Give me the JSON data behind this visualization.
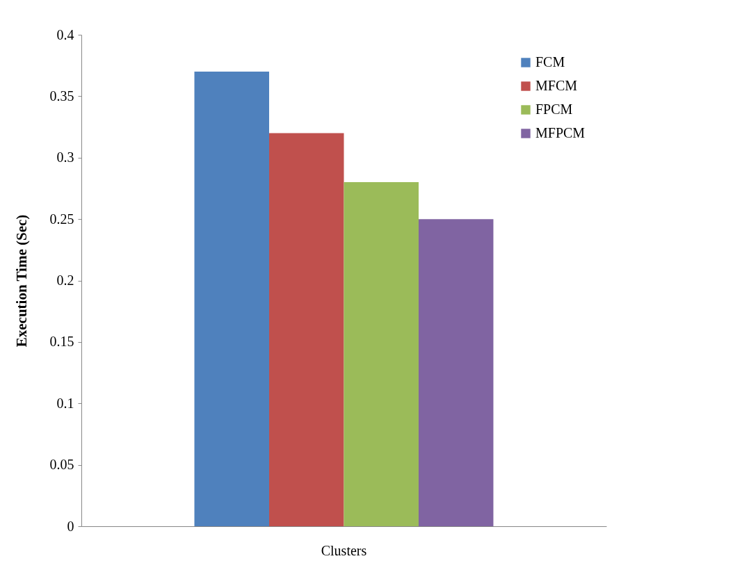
{
  "chart_data": {
    "type": "bar",
    "ylabel": "Execution Time (Sec)",
    "categories": [
      "Clusters"
    ],
    "series": [
      {
        "name": "FCM",
        "color": "#4f81bd",
        "values": [
          0.37
        ]
      },
      {
        "name": "MFCM",
        "color": "#c0504d",
        "values": [
          0.32
        ]
      },
      {
        "name": "FPCM",
        "color": "#9bbb59",
        "values": [
          0.28
        ]
      },
      {
        "name": "MFPCM",
        "color": "#8064a2",
        "values": [
          0.25
        ]
      }
    ],
    "ylim": [
      0,
      0.4
    ],
    "yticks": [
      0,
      0.05,
      0.1,
      0.15,
      0.2,
      0.25,
      0.3,
      0.35,
      0.4
    ],
    "grid": false,
    "legend": "top right"
  }
}
